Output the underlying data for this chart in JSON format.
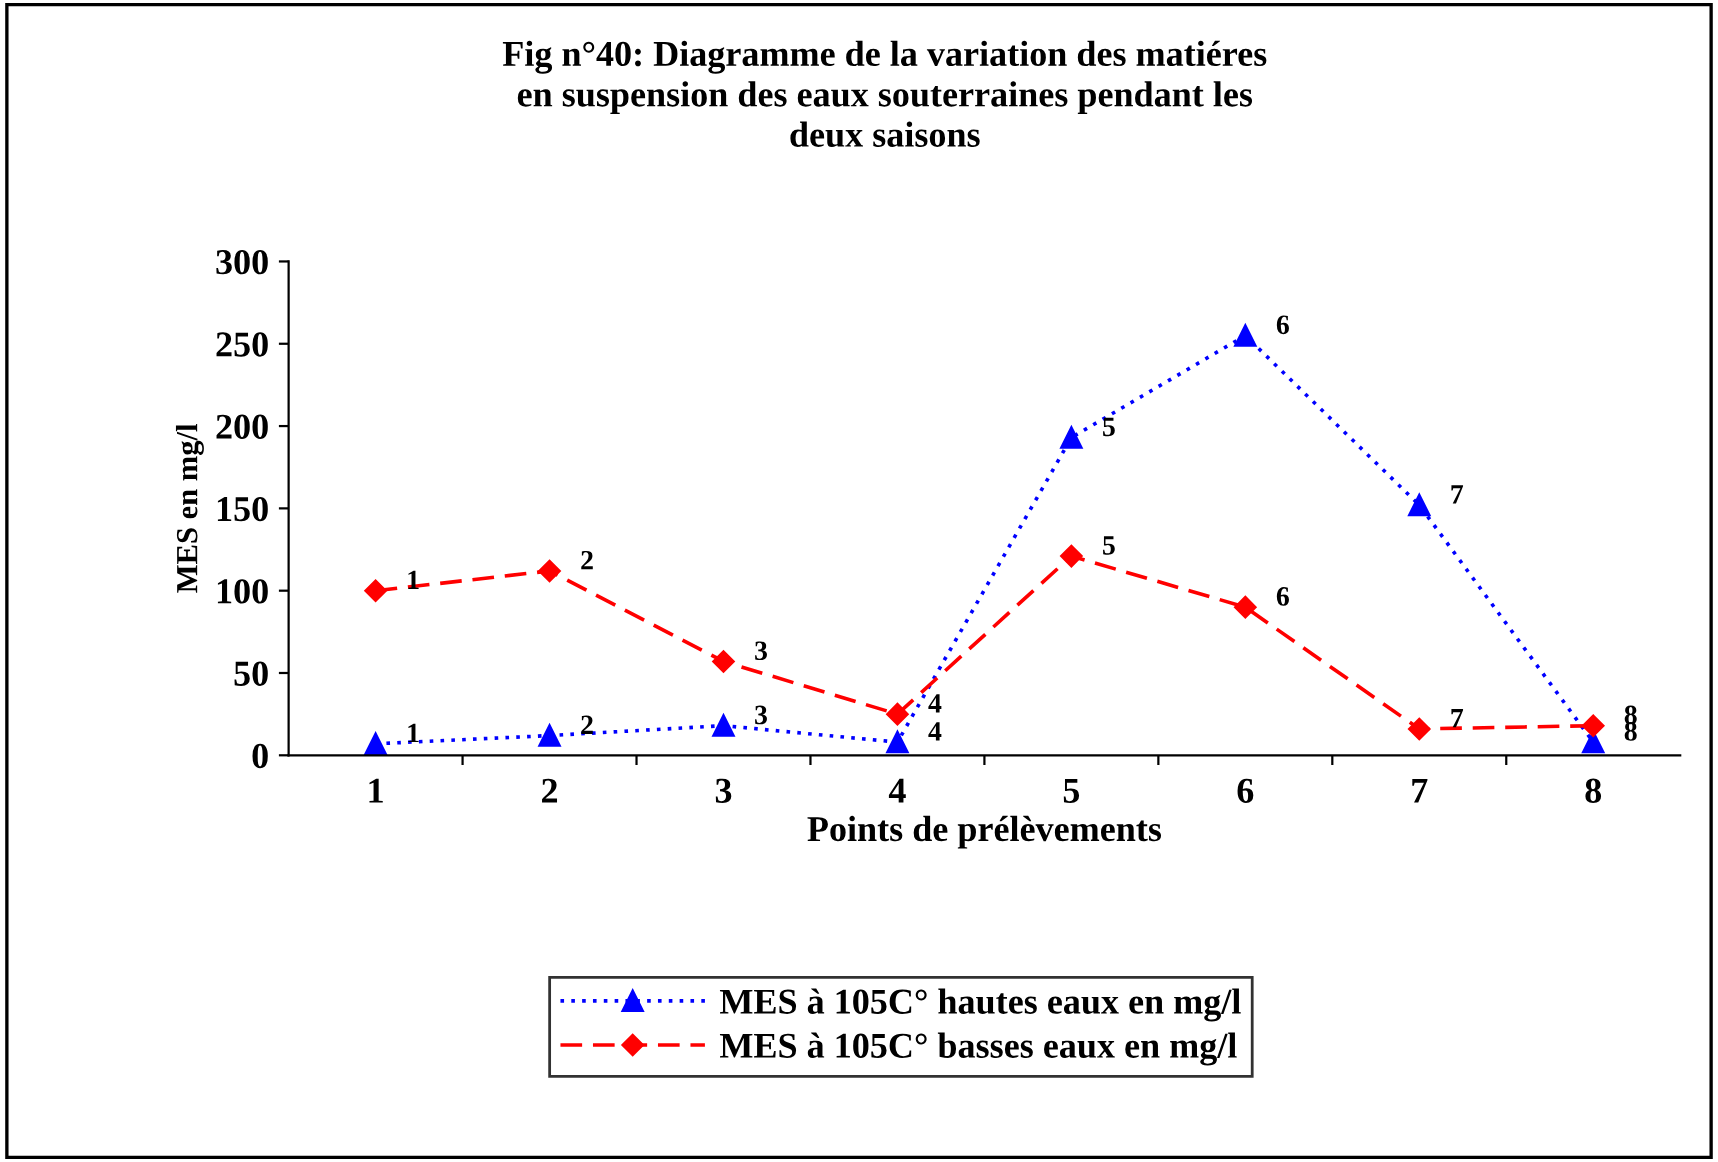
{
  "chart_data": {
    "type": "line",
    "title": "Fig n°40: Diagramme de la variation des matiéres\nen suspension des eaux souterraines pendant les\ndeux saisons",
    "xlabel": "Points de prélèvements",
    "ylabel": "MES en mg/l",
    "categories": [
      "1",
      "2",
      "3",
      "4",
      "5",
      "6",
      "7",
      "8"
    ],
    "ylim": [
      0,
      300
    ],
    "yticks": [
      0,
      50,
      100,
      150,
      200,
      250,
      300
    ],
    "grid": false,
    "legend": "bottom",
    "series": [
      {
        "name": "MES à 105C° hautes eaux en mg/l",
        "color": "#0000ff",
        "marker": "triangle",
        "line_style": "dotted",
        "values": [
          7,
          12,
          18,
          8,
          193,
          255,
          152,
          8
        ]
      },
      {
        "name": "MES à 105C° basses eaux en mg/l",
        "color": "#ff0000",
        "marker": "diamond",
        "line_style": "dashed",
        "values": [
          100,
          112,
          57,
          25,
          121,
          90,
          16,
          18
        ]
      }
    ],
    "annotations": [
      {
        "text": "1",
        "x": "1",
        "y": 7
      },
      {
        "text": "2",
        "x": "2",
        "y": 12
      },
      {
        "text": "3",
        "x": "3",
        "y": 18
      },
      {
        "text": "4",
        "x": "4",
        "y": 8
      },
      {
        "text": "5",
        "x": "5",
        "y": 193
      },
      {
        "text": "6",
        "x": "6",
        "y": 255
      },
      {
        "text": "7",
        "x": "7",
        "y": 152
      },
      {
        "text": "8",
        "x": "8",
        "y": 8
      },
      {
        "text": "1",
        "x": "1",
        "y": 100
      },
      {
        "text": "2",
        "x": "2",
        "y": 112
      },
      {
        "text": "3",
        "x": "3",
        "y": 57
      },
      {
        "text": "4",
        "x": "4",
        "y": 25
      },
      {
        "text": "5",
        "x": "5",
        "y": 121
      },
      {
        "text": "6",
        "x": "6",
        "y": 90
      },
      {
        "text": "7",
        "x": "7",
        "y": 16
      },
      {
        "text": "8",
        "x": "8",
        "y": 18
      }
    ]
  }
}
